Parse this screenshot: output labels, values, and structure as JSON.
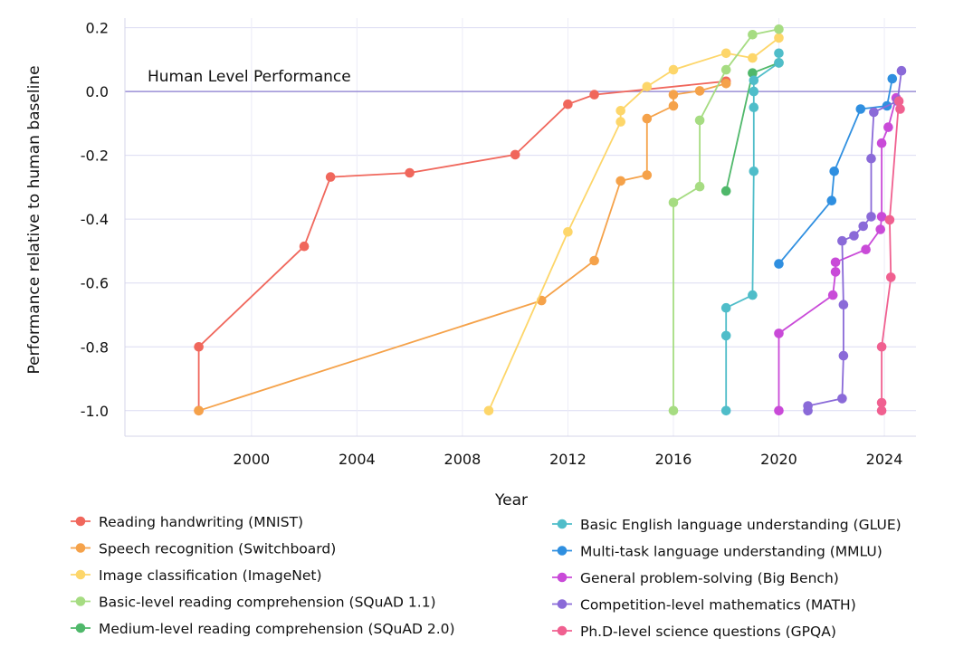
{
  "chart_data": {
    "type": "line",
    "title": "",
    "xlabel": "Year",
    "ylabel": "Performance relative to human baseline",
    "xlim": [
      1995.2,
      2025.2
    ],
    "ylim": [
      -1.08,
      0.23
    ],
    "x_ticks": [
      2000,
      2004,
      2008,
      2012,
      2016,
      2020,
      2024
    ],
    "x_tick_labels": [
      "2000",
      "2004",
      "2008",
      "2012",
      "2016",
      "2020",
      "2024"
    ],
    "y_ticks": [
      0.2,
      0.0,
      -0.2,
      -0.4,
      -0.6,
      -0.8,
      -1.0
    ],
    "y_tick_labels": [
      "0.2",
      "0.0",
      "-0.2",
      "-0.4",
      "-0.6",
      "-0.8",
      "-1.0"
    ],
    "grid": true,
    "reference_line": {
      "y": 0.0,
      "label": "Human Level Performance",
      "color": "#9b8fd6"
    },
    "legend_position": "bottom",
    "series": [
      {
        "name": "Reading handwriting (MNIST)",
        "color": "#f0675c",
        "points": [
          [
            1998,
            -1.0
          ],
          [
            1998,
            -0.8
          ],
          [
            2002,
            -0.485
          ],
          [
            2003,
            -0.268
          ],
          [
            2006,
            -0.255
          ],
          [
            2010,
            -0.198
          ],
          [
            2012,
            -0.04
          ],
          [
            2013,
            -0.01
          ],
          [
            2018,
            0.032
          ]
        ]
      },
      {
        "name": "Speech recognition (Switchboard)",
        "color": "#f5a24a",
        "points": [
          [
            1998,
            -1.0
          ],
          [
            2011,
            -0.655
          ],
          [
            2013,
            -0.53
          ],
          [
            2014,
            -0.28
          ],
          [
            2015,
            -0.262
          ],
          [
            2015,
            -0.085
          ],
          [
            2016,
            -0.045
          ],
          [
            2016,
            -0.01
          ],
          [
            2017,
            0.002
          ],
          [
            2018,
            0.025
          ]
        ]
      },
      {
        "name": "Image classification (ImageNet)",
        "color": "#fdd66a",
        "points": [
          [
            2009,
            -1.0
          ],
          [
            2012,
            -0.44
          ],
          [
            2014,
            -0.095
          ],
          [
            2014,
            -0.06
          ],
          [
            2015,
            0.015
          ],
          [
            2016,
            0.068
          ],
          [
            2018,
            0.12
          ],
          [
            2019,
            0.105
          ],
          [
            2020,
            0.168
          ]
        ]
      },
      {
        "name": "Basic-level reading comprehension (SQuAD 1.1)",
        "color": "#a6dc82",
        "points": [
          [
            2016,
            -1.0
          ],
          [
            2016,
            -0.348
          ],
          [
            2017,
            -0.298
          ],
          [
            2017,
            -0.09
          ],
          [
            2018,
            0.068
          ],
          [
            2019,
            0.178
          ],
          [
            2020,
            0.195
          ]
        ]
      },
      {
        "name": "Medium-level reading comprehension (SQuAD 2.0)",
        "color": "#4fb86a",
        "points": [
          [
            2018,
            -0.312
          ],
          [
            2019,
            0.058
          ],
          [
            2020,
            0.09
          ]
        ]
      },
      {
        "name": "Basic English language understanding (GLUE)",
        "color": "#4fbdc9",
        "points": [
          [
            2018,
            -1.0
          ],
          [
            2018,
            -0.765
          ],
          [
            2018,
            -0.678
          ],
          [
            2019,
            -0.638
          ],
          [
            2019.05,
            -0.25
          ],
          [
            2019.05,
            -0.05
          ],
          [
            2019.05,
            0.0
          ],
          [
            2019.05,
            0.035
          ],
          [
            2020,
            0.09
          ],
          [
            2020,
            0.12
          ]
        ]
      },
      {
        "name": "Multi-task language understanding (MMLU)",
        "color": "#2f8fe0",
        "points": [
          [
            2020,
            -0.54
          ],
          [
            2022,
            -0.342
          ],
          [
            2022.1,
            -0.25
          ],
          [
            2023.1,
            -0.055
          ],
          [
            2024.1,
            -0.045
          ],
          [
            2024.3,
            0.04
          ]
        ]
      },
      {
        "name": "General problem-solving (Big Bench)",
        "color": "#c94ad8",
        "points": [
          [
            2020,
            -1.0
          ],
          [
            2020,
            -0.758
          ],
          [
            2022.05,
            -0.638
          ],
          [
            2022.15,
            -0.565
          ],
          [
            2022.15,
            -0.535
          ],
          [
            2023.3,
            -0.495
          ],
          [
            2023.85,
            -0.432
          ],
          [
            2023.9,
            -0.392
          ],
          [
            2023.9,
            -0.162
          ],
          [
            2024.15,
            -0.112
          ],
          [
            2024.45,
            -0.02
          ]
        ]
      },
      {
        "name": "Competition-level mathematics (MATH)",
        "color": "#8a6ad8",
        "points": [
          [
            2021.1,
            -1.0
          ],
          [
            2021.1,
            -0.985
          ],
          [
            2022.4,
            -0.962
          ],
          [
            2022.45,
            -0.828
          ],
          [
            2022.45,
            -0.668
          ],
          [
            2022.4,
            -0.468
          ],
          [
            2022.85,
            -0.452
          ],
          [
            2023.2,
            -0.422
          ],
          [
            2023.5,
            -0.392
          ],
          [
            2023.5,
            -0.21
          ],
          [
            2023.6,
            -0.065
          ],
          [
            2024.5,
            -0.03
          ],
          [
            2024.65,
            0.065
          ]
        ]
      },
      {
        "name": "Ph.D-level science questions (GPQA)",
        "color": "#f06090",
        "points": [
          [
            2023.9,
            -1.0
          ],
          [
            2023.9,
            -0.975
          ],
          [
            2023.9,
            -0.8
          ],
          [
            2024.25,
            -0.582
          ],
          [
            2024.2,
            -0.402
          ],
          [
            2024.55,
            -0.03
          ],
          [
            2024.6,
            -0.055
          ]
        ]
      }
    ]
  }
}
